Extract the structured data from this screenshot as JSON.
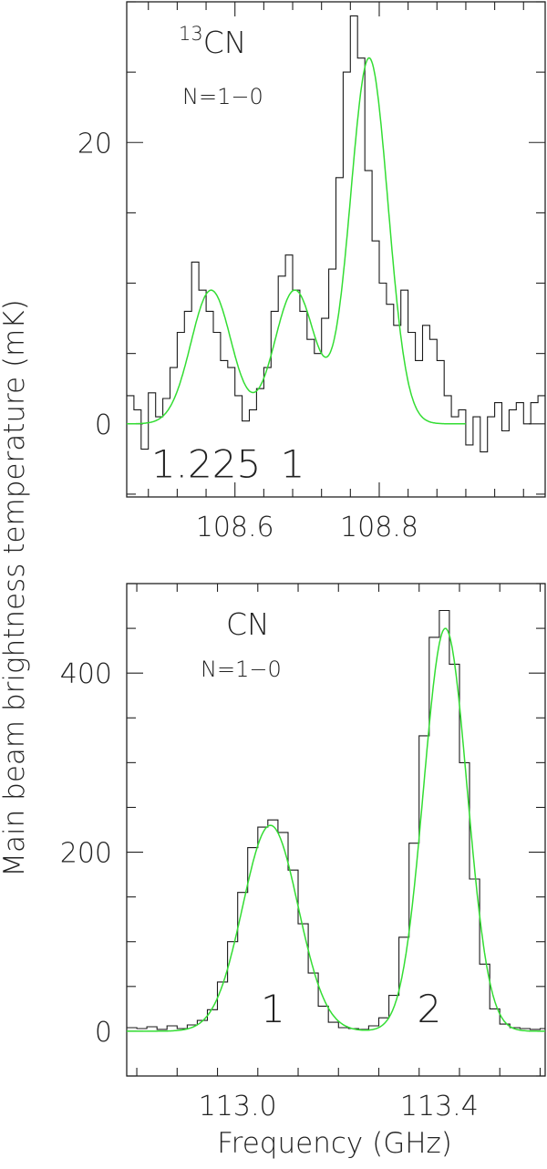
{
  "chart_data": [
    {
      "type": "line",
      "molecule_iso": "13",
      "molecule": "CN",
      "transition": "N=1−0",
      "xlim": [
        108.45,
        109.03
      ],
      "ylim": [
        -5.2,
        30
      ],
      "xticks": [
        108.6,
        108.8
      ],
      "xtick_labels": [
        "108.6",
        "108.8"
      ],
      "yticks": [
        0,
        20
      ],
      "ytick_labels": [
        "0",
        "20"
      ],
      "component_labels": [
        {
          "text": "1.225",
          "x": 108.56,
          "y": -3.8
        },
        {
          "text": "1",
          "x": 108.68,
          "y": -3.8
        }
      ],
      "observed_spectrum": {
        "x": [
          108.455,
          108.465,
          108.475,
          108.485,
          108.495,
          108.505,
          108.515,
          108.525,
          108.535,
          108.545,
          108.555,
          108.565,
          108.575,
          108.585,
          108.595,
          108.605,
          108.615,
          108.625,
          108.635,
          108.645,
          108.655,
          108.665,
          108.675,
          108.685,
          108.695,
          108.705,
          108.715,
          108.725,
          108.735,
          108.745,
          108.755,
          108.765,
          108.775,
          108.785,
          108.795,
          108.805,
          108.815,
          108.825,
          108.835,
          108.845,
          108.855,
          108.865,
          108.875,
          108.885,
          108.895,
          108.905,
          108.915,
          108.925,
          108.935,
          108.945,
          108.955,
          108.965,
          108.975,
          108.985,
          108.995,
          109.005,
          109.015,
          109.025
        ],
        "y": [
          2.0,
          1.0,
          -1.8,
          2.2,
          0.5,
          1.8,
          4.0,
          6.5,
          8.0,
          11.5,
          9.5,
          8.0,
          6.5,
          4.5,
          4.0,
          2.0,
          0.2,
          1.0,
          2.5,
          4.0,
          8.0,
          10.5,
          12.0,
          9.5,
          8.0,
          6.0,
          5.0,
          7.5,
          11.0,
          17.5,
          25.0,
          29.0,
          26.0,
          18.0,
          13.0,
          10.0,
          8.5,
          7.0,
          9.5,
          6.5,
          4.5,
          7.0,
          6.0,
          4.5,
          2.0,
          0.5,
          1.0,
          -1.5,
          0.5,
          -2.0,
          0.5,
          1.5,
          -0.5,
          1.0,
          1.5,
          0.0,
          1.5,
          2.0
        ]
      },
      "fit": {
        "x_start": 108.45,
        "x_end": 108.92,
        "components": [
          {
            "center": 108.567,
            "amplitude": 9.5,
            "sigma": 0.028
          },
          {
            "center": 108.683,
            "amplitude": 9.5,
            "sigma": 0.028
          },
          {
            "center": 108.786,
            "amplitude": 26.0,
            "sigma": 0.026
          }
        ]
      }
    },
    {
      "type": "line",
      "molecule": "CN",
      "transition": "N=1−0",
      "xlim": [
        112.78,
        113.61
      ],
      "ylim": [
        -50,
        500
      ],
      "xticks": [
        113.0,
        113.4
      ],
      "xtick_labels": [
        "113.0",
        "113.4"
      ],
      "yticks": [
        0,
        200,
        400
      ],
      "ytick_labels": [
        "0",
        "200",
        "400"
      ],
      "component_labels": [
        {
          "text": "1",
          "x": 113.07,
          "y": 10
        },
        {
          "text": "2",
          "x": 113.38,
          "y": 10
        }
      ],
      "observed_spectrum": {
        "x": [
          112.79,
          112.81,
          112.83,
          112.85,
          112.87,
          112.89,
          112.91,
          112.93,
          112.95,
          112.97,
          112.99,
          113.01,
          113.03,
          113.05,
          113.07,
          113.09,
          113.11,
          113.13,
          113.15,
          113.17,
          113.19,
          113.21,
          113.23,
          113.25,
          113.27,
          113.29,
          113.31,
          113.33,
          113.35,
          113.37,
          113.39,
          113.41,
          113.43,
          113.45,
          113.47,
          113.49,
          113.51,
          113.53,
          113.55,
          113.57,
          113.59,
          113.61
        ],
        "y": [
          4,
          3,
          5,
          2,
          6,
          3,
          7,
          12,
          24,
          55,
          100,
          155,
          205,
          228,
          236,
          222,
          180,
          120,
          65,
          28,
          10,
          4,
          3,
          2,
          6,
          15,
          40,
          105,
          210,
          330,
          440,
          470,
          410,
          300,
          170,
          75,
          25,
          8,
          4,
          3,
          2,
          3
        ]
      },
      "fit": {
        "x_start": 112.78,
        "x_end": 113.61,
        "components": [
          {
            "center": 113.065,
            "amplitude": 230,
            "sigma": 0.055
          },
          {
            "center": 113.412,
            "amplitude": 450,
            "sigma": 0.043
          }
        ]
      }
    }
  ],
  "xlabel": "Frequency (GHz)",
  "ylabel": "Main beam brightness temperature (mK)",
  "colors": {
    "spectrum": "#1a1a1a",
    "fit": "#33dd33"
  }
}
